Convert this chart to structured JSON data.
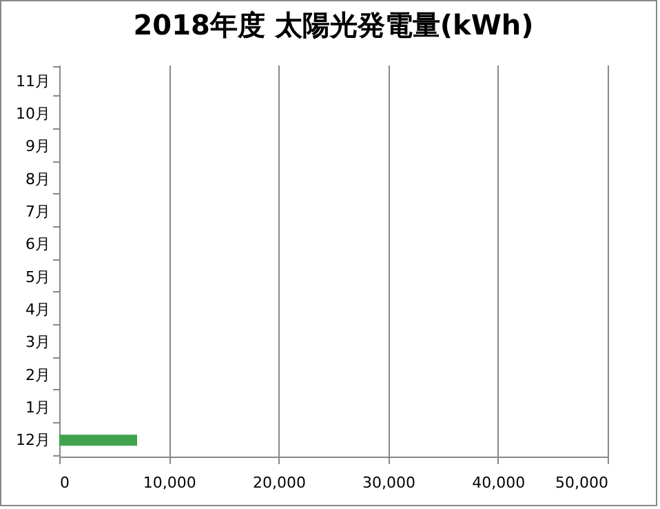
{
  "chart_data": {
    "type": "bar",
    "orientation": "horizontal",
    "title": "2018年度 太陽光発電量(kWh)",
    "categories": [
      "11月",
      "10月",
      "9月",
      "8月",
      "7月",
      "6月",
      "5月",
      "4月",
      "3月",
      "2月",
      "1月",
      "12月"
    ],
    "values": [
      null,
      null,
      null,
      null,
      null,
      null,
      null,
      null,
      null,
      null,
      null,
      7100
    ],
    "color": "#3fa34d",
    "xlim": [
      0,
      50000
    ],
    "xticks": [
      0,
      {
        "value": 10000,
        "label": "10,000"
      },
      {
        "value": 20000,
        "label": "20,000"
      },
      {
        "value": 30000,
        "label": "30,000"
      },
      {
        "value": 40000,
        "label": "40,000"
      },
      {
        "value": 50000,
        "label": "50,000"
      }
    ],
    "grid": "x"
  }
}
